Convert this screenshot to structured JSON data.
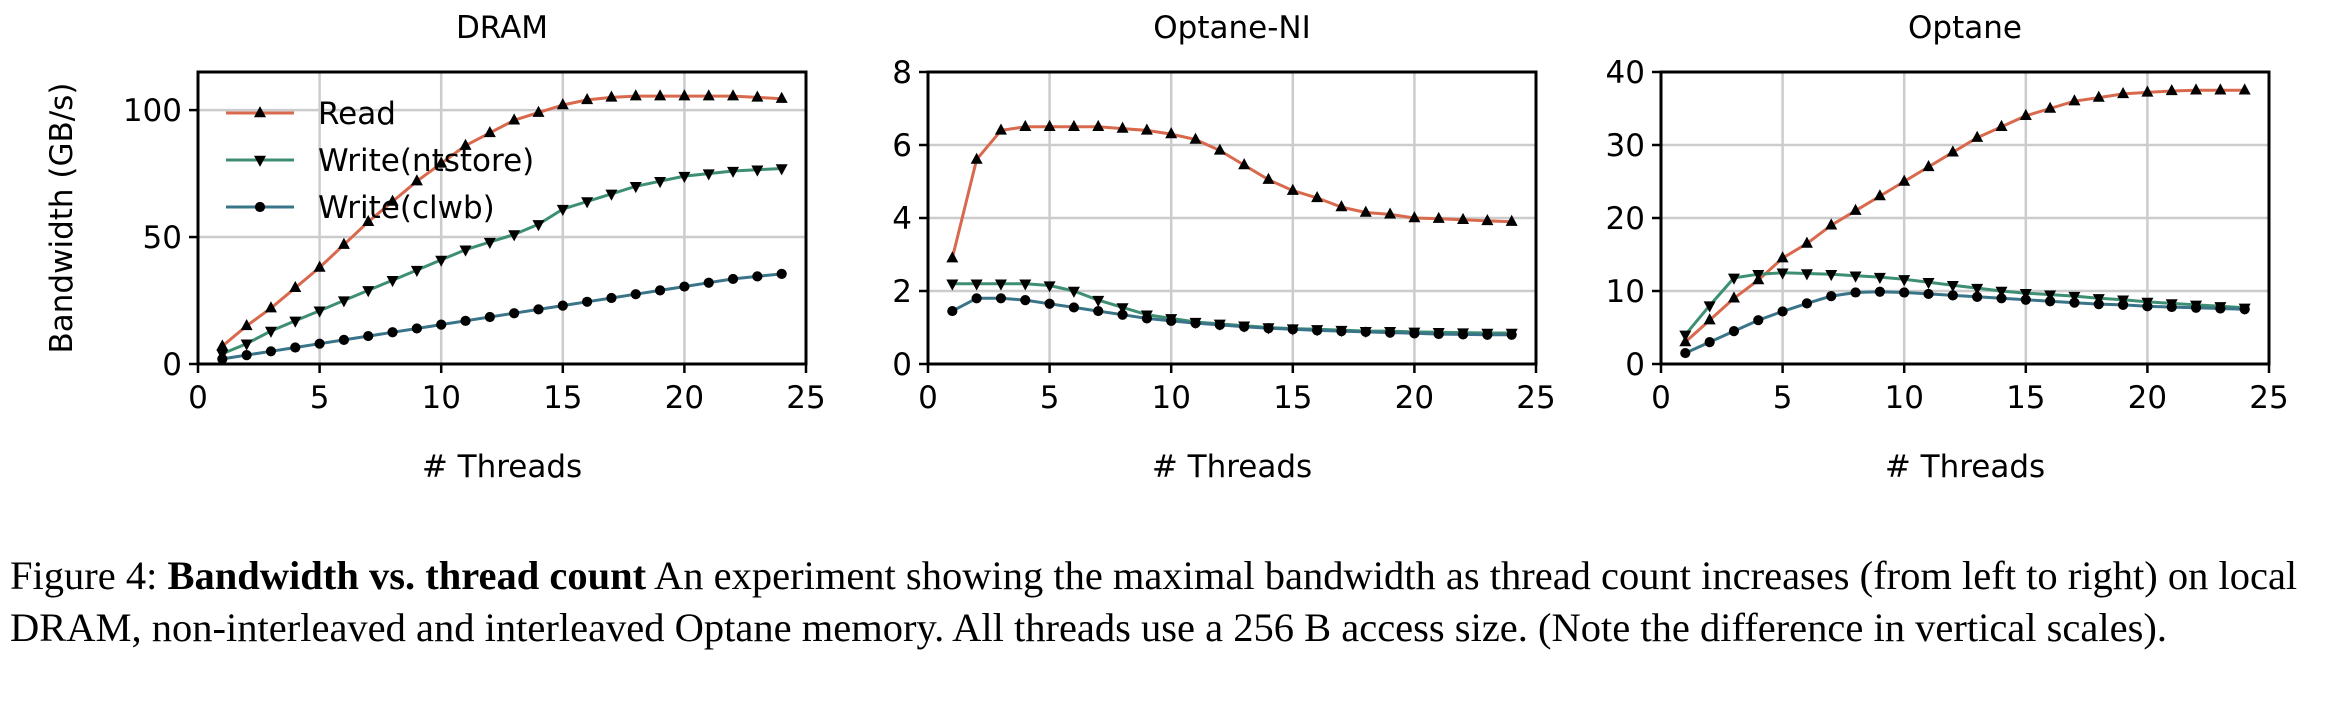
{
  "chart_data": [
    {
      "type": "line",
      "title": "DRAM",
      "xlabel": "# Threads",
      "ylabel": "Bandwidth (GB/s)",
      "xlim": [
        0,
        25
      ],
      "ylim": [
        0,
        115
      ],
      "xticks": [
        0,
        5,
        10,
        15,
        20,
        25
      ],
      "yticks": [
        0,
        50,
        100
      ],
      "grid": true,
      "legend": "upper-left",
      "x": [
        1,
        2,
        3,
        4,
        5,
        6,
        7,
        8,
        9,
        10,
        11,
        12,
        13,
        14,
        15,
        16,
        17,
        18,
        19,
        20,
        21,
        22,
        23,
        24
      ],
      "series": [
        {
          "name": "Read",
          "color": "#d9694d",
          "marker": "triangle-up",
          "values": [
            7,
            15,
            22,
            30,
            38,
            47,
            56,
            64,
            72,
            79,
            86,
            91,
            96,
            99,
            102,
            104,
            105,
            105.5,
            105.5,
            105.5,
            105.5,
            105.5,
            105,
            104.5
          ]
        },
        {
          "name": "Write(ntstore)",
          "color": "#3e8f72",
          "marker": "triangle-down",
          "values": [
            4,
            8,
            13,
            17,
            21,
            25,
            29,
            33,
            37,
            41,
            45,
            48,
            51,
            55,
            61,
            64,
            67,
            70,
            72,
            74,
            75,
            76,
            76.5,
            77
          ]
        },
        {
          "name": "Write(clwb)",
          "color": "#3a7489",
          "marker": "circle",
          "values": [
            2,
            3.5,
            5,
            6.5,
            8,
            9.5,
            11,
            12.5,
            14,
            15.5,
            17,
            18.5,
            20,
            21.5,
            23,
            24.5,
            26,
            27.5,
            29,
            30.5,
            32,
            33.5,
            34.5,
            35.5
          ]
        }
      ]
    },
    {
      "type": "line",
      "title": "Optane-NI",
      "xlabel": "# Threads",
      "ylabel": "",
      "xlim": [
        0,
        25
      ],
      "ylim": [
        0,
        8
      ],
      "xticks": [
        0,
        5,
        10,
        15,
        20,
        25
      ],
      "yticks": [
        0,
        2,
        4,
        6,
        8
      ],
      "grid": true,
      "x": [
        1,
        2,
        3,
        4,
        5,
        6,
        7,
        8,
        9,
        10,
        11,
        12,
        13,
        14,
        15,
        16,
        17,
        18,
        19,
        20,
        21,
        22,
        23,
        24
      ],
      "series": [
        {
          "name": "Read",
          "color": "#d9694d",
          "marker": "triangle-up",
          "values": [
            2.9,
            5.6,
            6.4,
            6.5,
            6.5,
            6.5,
            6.5,
            6.45,
            6.4,
            6.3,
            6.15,
            5.85,
            5.45,
            5.05,
            4.75,
            4.55,
            4.3,
            4.15,
            4.1,
            4.0,
            3.98,
            3.95,
            3.92,
            3.9
          ]
        },
        {
          "name": "Write(ntstore)",
          "color": "#3e8f72",
          "marker": "triangle-down",
          "values": [
            2.2,
            2.2,
            2.2,
            2.2,
            2.15,
            2.0,
            1.75,
            1.55,
            1.35,
            1.25,
            1.15,
            1.1,
            1.05,
            1.0,
            0.97,
            0.95,
            0.93,
            0.9,
            0.9,
            0.88,
            0.87,
            0.86,
            0.85,
            0.85
          ]
        },
        {
          "name": "Write(clwb)",
          "color": "#3a7489",
          "marker": "circle",
          "values": [
            1.45,
            1.8,
            1.8,
            1.75,
            1.65,
            1.55,
            1.45,
            1.35,
            1.25,
            1.18,
            1.12,
            1.07,
            1.02,
            0.98,
            0.95,
            0.92,
            0.9,
            0.88,
            0.86,
            0.84,
            0.82,
            0.81,
            0.8,
            0.8
          ]
        }
      ]
    },
    {
      "type": "line",
      "title": "Optane",
      "xlabel": "# Threads",
      "ylabel": "",
      "xlim": [
        0,
        25
      ],
      "ylim": [
        0,
        40
      ],
      "xticks": [
        0,
        5,
        10,
        15,
        20,
        25
      ],
      "yticks": [
        0,
        10,
        20,
        30,
        40
      ],
      "grid": true,
      "x": [
        1,
        2,
        3,
        4,
        5,
        6,
        7,
        8,
        9,
        10,
        11,
        12,
        13,
        14,
        15,
        16,
        17,
        18,
        19,
        20,
        21,
        22,
        23,
        24
      ],
      "series": [
        {
          "name": "Read",
          "color": "#d9694d",
          "marker": "triangle-up",
          "values": [
            3,
            6,
            9,
            11.5,
            14.5,
            16.5,
            19,
            21,
            23,
            25,
            27,
            29,
            31,
            32.5,
            34,
            35,
            36,
            36.5,
            37,
            37.2,
            37.4,
            37.5,
            37.5,
            37.5
          ]
        },
        {
          "name": "Write(ntstore)",
          "color": "#3e8f72",
          "marker": "triangle-down",
          "values": [
            4,
            8,
            11.8,
            12.3,
            12.5,
            12.4,
            12.3,
            12.1,
            11.9,
            11.6,
            11.2,
            10.8,
            10.4,
            10.0,
            9.7,
            9.5,
            9.3,
            9.0,
            8.8,
            8.5,
            8.3,
            8.1,
            7.9,
            7.7
          ]
        },
        {
          "name": "Write(clwb)",
          "color": "#3a7489",
          "marker": "circle",
          "values": [
            1.5,
            3,
            4.5,
            6,
            7.2,
            8.3,
            9.3,
            9.8,
            9.9,
            9.8,
            9.6,
            9.4,
            9.2,
            9.0,
            8.8,
            8.6,
            8.4,
            8.2,
            8.1,
            7.9,
            7.8,
            7.7,
            7.6,
            7.5
          ]
        }
      ]
    }
  ],
  "caption": {
    "prefix": "Figure 4: ",
    "bold": "Bandwidth vs. thread count",
    "rest": " An experiment showing the maximal bandwidth as thread count increases (from left to right) on local DRAM, non-interleaved and interleaved Optane memory. All threads use a 256 B access size. (Note the difference in vertical scales)."
  }
}
